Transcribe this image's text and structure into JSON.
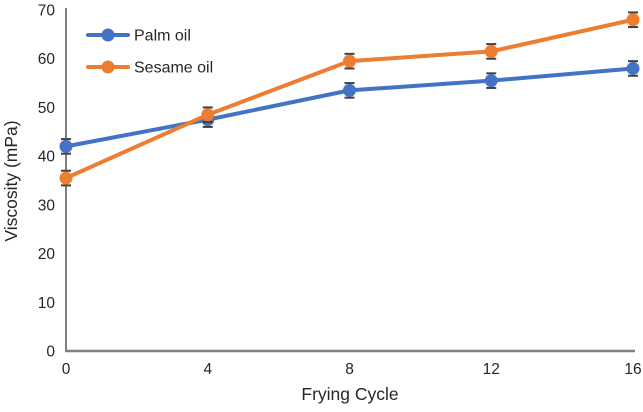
{
  "chart_data": {
    "type": "line",
    "title": "",
    "xlabel": "Frying Cycle",
    "ylabel": "Viscosity (mPa)",
    "x": [
      0,
      4,
      8,
      12,
      16
    ],
    "xticks": [
      "0",
      "4",
      "8",
      "12",
      "16"
    ],
    "yticks": [
      "0",
      "10",
      "20",
      "30",
      "40",
      "50",
      "60",
      "70"
    ],
    "xlim": [
      0,
      16
    ],
    "ylim": [
      0,
      70
    ],
    "grid": false,
    "legend_position": "top-left-inside",
    "series": [
      {
        "name": "Palm oil",
        "color": "#4472C4",
        "values": [
          42,
          47.5,
          53.5,
          55.5,
          58
        ],
        "error": 1.5
      },
      {
        "name": "Sesame oil",
        "color": "#ED7D31",
        "values": [
          35.5,
          48.5,
          59.5,
          61.5,
          68
        ],
        "error": 1.5
      }
    ],
    "colors": {
      "axis": "#808080",
      "text": "#262626",
      "error_bar": "#404040",
      "background": "#FFFFFF"
    }
  }
}
